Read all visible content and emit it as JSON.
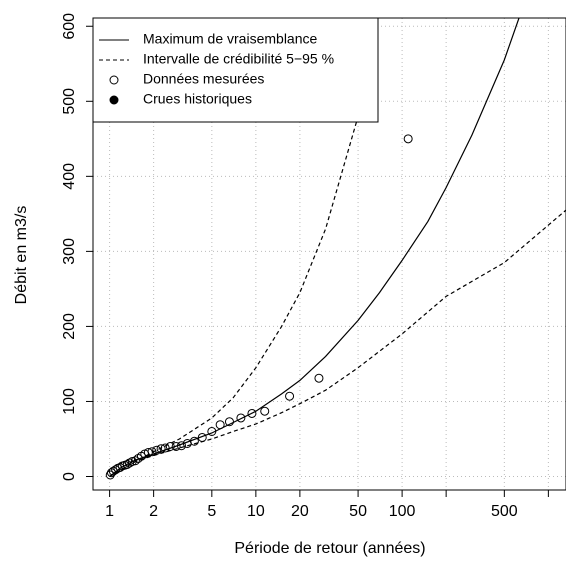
{
  "chart_data": {
    "type": "line",
    "x_label": "Période de retour (années)",
    "y_label": "Débit en m3/s",
    "x_log": true,
    "xlim": [
      0.77,
      1320
    ],
    "ylim": [
      -18,
      611
    ],
    "xticks": [
      1,
      2,
      5,
      10,
      20,
      50,
      100,
      500
    ],
    "minor_xticks": [
      200,
      1000
    ],
    "yticks": [
      0,
      100,
      200,
      300,
      400,
      500,
      600
    ],
    "grid": true,
    "legend_position": "upper left",
    "series": [
      {
        "name": "Maximum de vraisemblance",
        "color": "#000000",
        "style": "solid",
        "x": [
          1,
          1.2,
          1.5,
          2,
          3,
          5,
          7,
          10,
          15,
          20,
          30,
          50,
          70,
          100,
          150,
          200,
          300,
          500,
          630
        ],
        "values": [
          0,
          12,
          22,
          30,
          42,
          58,
          72,
          87,
          110,
          128,
          160,
          208,
          245,
          288,
          340,
          385,
          455,
          555,
          611
        ]
      },
      {
        "name": "Intervalle de crédibilité 5−95 %",
        "color": "#000000",
        "style": "dashed",
        "x": [
          1,
          1.5,
          2,
          3,
          5,
          7,
          10,
          15,
          20,
          30,
          50,
          60,
          66
        ],
        "values": [
          0,
          20,
          33,
          50,
          78,
          105,
          145,
          200,
          245,
          330,
          480,
          560,
          611
        ]
      },
      {
        "name": "Intervalle de crédibilité 5−95 %",
        "color": "#000000",
        "style": "dashed",
        "in_legend": false,
        "x": [
          1,
          1.5,
          2,
          3,
          5,
          7,
          10,
          15,
          20,
          30,
          50,
          100,
          200,
          500,
          1000,
          1320
        ],
        "values": [
          0,
          20,
          28,
          38,
          50,
          60,
          70,
          85,
          97,
          115,
          145,
          190,
          240,
          285,
          335,
          355
        ]
      },
      {
        "name": "Données mesurées",
        "color": "#000000",
        "style": "open-circle",
        "x": [
          1.01,
          1.03,
          1.06,
          1.1,
          1.14,
          1.18,
          1.22,
          1.27,
          1.32,
          1.37,
          1.43,
          1.5,
          1.57,
          1.65,
          1.74,
          1.84,
          1.95,
          2.1,
          2.25,
          2.4,
          2.6,
          2.85,
          3.1,
          3.4,
          3.8,
          4.3,
          5.0,
          5.7,
          6.6,
          7.9,
          9.4,
          11.5,
          17,
          27,
          110
        ],
        "values": [
          2,
          5,
          7,
          9,
          11,
          12,
          14,
          15,
          16,
          18,
          20,
          21,
          24,
          27,
          30,
          32,
          33,
          35,
          37,
          38,
          40,
          40,
          41,
          44,
          47,
          52,
          60,
          69,
          73,
          78,
          84,
          87,
          107,
          131,
          450
        ]
      },
      {
        "name": "Crues historiques",
        "color": "#000000",
        "style": "filled-circle",
        "x": [],
        "values": []
      }
    ]
  }
}
